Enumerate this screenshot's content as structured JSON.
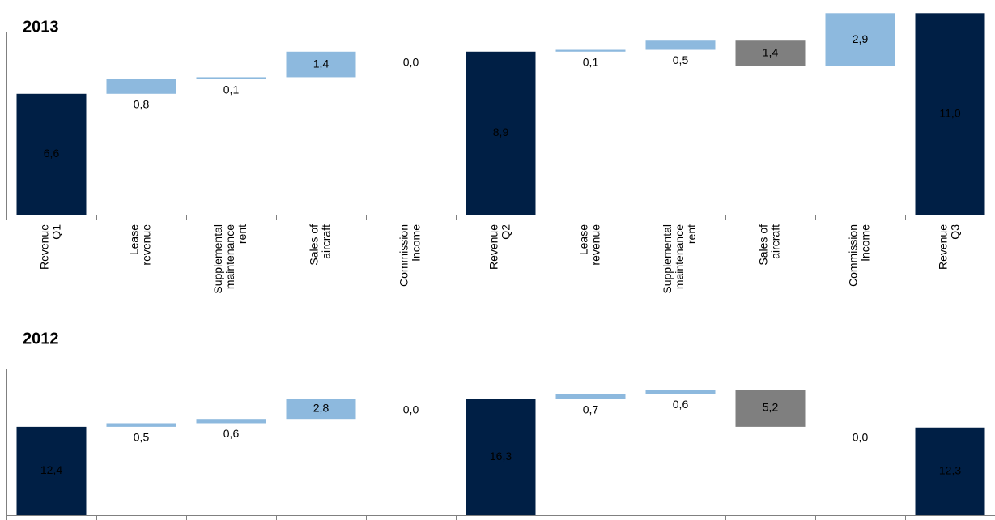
{
  "chart_data": [
    {
      "type": "waterfall",
      "title": "2013",
      "categories": [
        [
          "Revenue",
          "Q1"
        ],
        [
          "Lease",
          "revenue"
        ],
        [
          "Supplemental",
          "maintenance",
          "rent"
        ],
        [
          "Sales of",
          "aircraft"
        ],
        [
          "Commission",
          "Income"
        ],
        [
          "Revenue",
          "Q2"
        ],
        [
          "Lease",
          "revenue"
        ],
        [
          "Supplemental",
          "maintenance",
          "rent"
        ],
        [
          "Sales of",
          "aircraft"
        ],
        [
          "Commission",
          "Income"
        ],
        [
          "Revenue",
          "Q3"
        ]
      ],
      "values": [
        6.6,
        0.8,
        0.1,
        1.4,
        0.0,
        8.9,
        0.1,
        0.5,
        1.4,
        2.9,
        11.0
      ],
      "value_labels": [
        "6,6",
        "0,8",
        "0,1",
        "1,4",
        "0,0",
        "8,9",
        "0,1",
        "0,5",
        "1,4",
        "2,9",
        "11,0"
      ],
      "kinds": [
        "total",
        "increase",
        "increase",
        "increase",
        "increase",
        "total",
        "increase",
        "increase",
        "decrease",
        "increase",
        "total"
      ],
      "colors": {
        "total": "#001f45",
        "increase": "#8db9de",
        "decrease": "#7f7f7f"
      },
      "ylim": [
        0,
        11.5
      ]
    },
    {
      "type": "waterfall",
      "title": "2012",
      "categories": [
        null,
        null,
        null,
        null,
        null,
        null,
        null,
        null,
        null,
        null,
        null
      ],
      "values": [
        12.4,
        0.5,
        0.6,
        2.8,
        0.0,
        16.3,
        0.7,
        0.6,
        5.2,
        0.0,
        12.3
      ],
      "value_labels": [
        "12,4",
        "0,5",
        "0,6",
        "2,8",
        "0,0",
        "16,3",
        "0,7",
        "0,6",
        "5,2",
        "0,0",
        "12,3"
      ],
      "kinds": [
        "total",
        "increase",
        "increase",
        "increase",
        "increase",
        "total",
        "increase",
        "increase",
        "decrease",
        "increase",
        "total"
      ],
      "colors": {
        "total": "#001f45",
        "increase": "#8db9de",
        "decrease": "#7f7f7f"
      },
      "ylim": [
        0,
        20
      ]
    }
  ]
}
